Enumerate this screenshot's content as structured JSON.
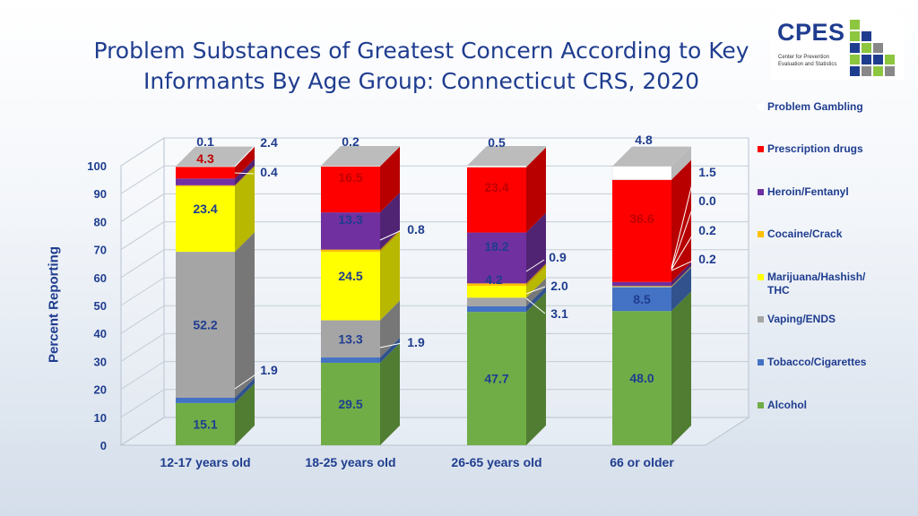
{
  "title": "Problem Substances of Greatest Concern According to Key Informants By Age Group: Connecticut CRS, 2020",
  "logo": {
    "name": "CPES",
    "subtitle": "Center for Prevention Evaluation and Statistics"
  },
  "chart_data": {
    "type": "bar",
    "stacked": true,
    "title": "Problem Substances of Greatest Concern According to Key Informants By Age Group: Connecticut CRS, 2020",
    "xlabel": "",
    "ylabel": "Percent Reporting",
    "ylim": [
      0,
      100
    ],
    "yticks": [
      0,
      10,
      20,
      30,
      40,
      50,
      60,
      70,
      80,
      90,
      100
    ],
    "categories": [
      "12-17 years old",
      "18-25 years old",
      "26-65 years old",
      "66 or older"
    ],
    "series": [
      {
        "name": "Alcohol",
        "color": "#70ad47",
        "values": [
          15.1,
          29.5,
          47.7,
          48.0
        ]
      },
      {
        "name": "Tobacco/Cigarettes",
        "color": "#4472c4",
        "values": [
          1.9,
          1.9,
          2.0,
          8.5
        ]
      },
      {
        "name": "Vaping/ENDS",
        "color": "#a5a5a5",
        "values": [
          52.2,
          13.3,
          3.1,
          0.2
        ]
      },
      {
        "name": "Marijuana/Hashish/ THC",
        "color": "#ffff00",
        "values": [
          23.4,
          24.5,
          4.2,
          0.2
        ]
      },
      {
        "name": "Cocaine/Crack",
        "color": "#ffc000",
        "values": [
          0.4,
          0.8,
          0.9,
          0.0
        ]
      },
      {
        "name": "Heroin/Fentanyl",
        "color": "#7030a0",
        "values": [
          2.4,
          13.3,
          18.2,
          1.5
        ]
      },
      {
        "name": "Prescription drugs",
        "color": "#ff0000",
        "values": [
          4.3,
          16.5,
          23.4,
          36.6
        ]
      },
      {
        "name": "Problem Gambling",
        "color": "#ffffff",
        "values": [
          0.1,
          0.2,
          0.5,
          4.8
        ]
      }
    ]
  }
}
